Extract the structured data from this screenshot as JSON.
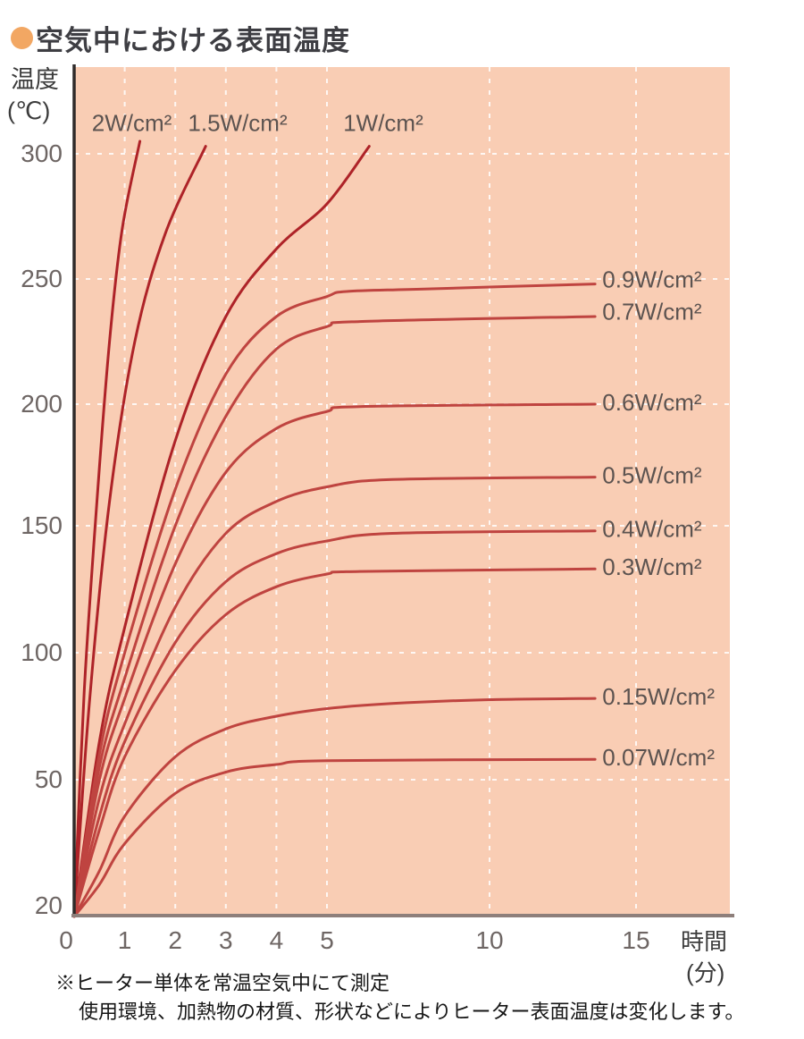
{
  "title": "空気中における表面温度",
  "y_axis": {
    "title_line1": "温度",
    "title_line2": "(℃)",
    "ticks": [
      300,
      250,
      200,
      150,
      100,
      50,
      20
    ]
  },
  "x_axis": {
    "ticks": [
      0,
      1,
      2,
      3,
      4,
      5,
      10,
      15
    ],
    "title_line1": "時間",
    "title_line2": "(分)"
  },
  "notes": {
    "line1": "※ヒーター単体を常温空気中にて測定",
    "line2": "使用環境、加熱物の材質、形状などによりヒーター表面温度は変化します。"
  },
  "colors": {
    "plot_bg": "#f9cdb4",
    "grid": "#ffffff",
    "axis": "#2f2b2a",
    "baseline": "#8e7f7b",
    "bullet": "#f2a763",
    "title_text": "#3e3e43",
    "tick_text": "#6e6664",
    "label_text": "#5c5350",
    "note_text": "#161616",
    "curve_steep": "#ae2328",
    "curve_flat": "#bf4440"
  },
  "chart_data": {
    "type": "line",
    "title": "空気中における表面温度",
    "xlabel": "時間(分)",
    "ylabel": "温度(℃)",
    "x_range": [
      0,
      15
    ],
    "y_range": [
      20,
      310
    ],
    "grid": {
      "x_lines": [
        1,
        2,
        3,
        4,
        5,
        10,
        15
      ],
      "y_lines": [
        50,
        100,
        150,
        200,
        250,
        300
      ]
    },
    "legend_position": "inline-labels",
    "series": [
      {
        "label": "2W/cm²",
        "group": "steep",
        "label_anchor": {
          "t": 0.35,
          "T": 311.5
        },
        "points": [
          [
            0,
            20
          ],
          [
            0.2,
            85
          ],
          [
            0.45,
            160
          ],
          [
            0.7,
            225
          ],
          [
            0.95,
            270
          ],
          [
            1.3,
            305
          ]
        ]
      },
      {
        "label": "1.5W/cm²",
        "group": "steep",
        "label_anchor": {
          "t": 2.25,
          "T": 311.5
        },
        "points": [
          [
            0,
            20
          ],
          [
            0.3,
            80
          ],
          [
            0.7,
            160
          ],
          [
            1.2,
            225
          ],
          [
            1.8,
            268
          ],
          [
            2.6,
            303
          ]
        ]
      },
      {
        "label": "1W/cm²",
        "group": "steep",
        "label_anchor": {
          "t": 5.5,
          "T": 311.5
        },
        "points": [
          [
            0,
            20
          ],
          [
            0.5,
            65
          ],
          [
            1,
            110
          ],
          [
            2,
            185
          ],
          [
            3,
            235
          ],
          [
            4,
            262
          ],
          [
            5,
            280
          ],
          [
            6.3,
            303
          ]
        ]
      },
      {
        "label": "0.9W/cm²",
        "group": "flat",
        "label_anchor": {
          "t": 13.85,
          "T": 249
        },
        "points": [
          [
            0,
            20
          ],
          [
            0.5,
            60
          ],
          [
            1,
            100
          ],
          [
            2,
            165
          ],
          [
            3,
            212
          ],
          [
            4,
            235
          ],
          [
            5,
            243
          ],
          [
            5.6,
            245
          ],
          [
            8,
            246
          ],
          [
            13.6,
            248
          ]
        ]
      },
      {
        "label": "0.7W/cm²",
        "group": "flat",
        "label_anchor": {
          "t": 13.85,
          "T": 236.3
        },
        "points": [
          [
            0,
            20
          ],
          [
            0.5,
            55
          ],
          [
            1,
            90
          ],
          [
            2,
            150
          ],
          [
            3,
            195
          ],
          [
            4,
            222
          ],
          [
            5,
            231
          ],
          [
            6,
            233
          ],
          [
            13.6,
            235
          ]
        ]
      },
      {
        "label": "0.6W/cm²",
        "group": "flat",
        "label_anchor": {
          "t": 13.85,
          "T": 200
        },
        "points": [
          [
            0,
            20
          ],
          [
            0.5,
            50
          ],
          [
            1,
            82
          ],
          [
            2,
            135
          ],
          [
            3,
            172
          ],
          [
            4,
            190
          ],
          [
            5,
            197
          ],
          [
            6,
            199
          ],
          [
            13.6,
            200
          ]
        ]
      },
      {
        "label": "0.5W/cm²",
        "group": "flat",
        "label_anchor": {
          "t": 13.85,
          "T": 170
        },
        "points": [
          [
            0,
            20
          ],
          [
            0.5,
            46
          ],
          [
            1,
            72
          ],
          [
            2,
            118
          ],
          [
            3,
            147
          ],
          [
            4,
            160
          ],
          [
            5,
            166
          ],
          [
            7,
            169
          ],
          [
            13.6,
            170
          ]
        ]
      },
      {
        "label": "0.4W/cm²",
        "group": "flat",
        "label_anchor": {
          "t": 13.85,
          "T": 148
        },
        "points": [
          [
            0,
            20
          ],
          [
            0.5,
            42
          ],
          [
            1,
            65
          ],
          [
            2,
            104
          ],
          [
            3,
            128
          ],
          [
            4,
            139
          ],
          [
            5,
            144
          ],
          [
            7,
            147
          ],
          [
            13.6,
            148
          ]
        ]
      },
      {
        "label": "0.3W/cm²",
        "group": "flat",
        "label_anchor": {
          "t": 13.85,
          "T": 133
        },
        "points": [
          [
            0,
            20
          ],
          [
            0.5,
            39
          ],
          [
            1,
            59
          ],
          [
            2,
            93
          ],
          [
            3,
            115
          ],
          [
            4,
            126
          ],
          [
            5,
            131
          ],
          [
            6,
            132
          ],
          [
            13.6,
            133
          ]
        ]
      },
      {
        "label": "0.15W/cm²",
        "group": "flat",
        "label_anchor": {
          "t": 13.85,
          "T": 82
        },
        "points": [
          [
            0,
            20
          ],
          [
            0.5,
            30
          ],
          [
            1,
            42
          ],
          [
            2,
            59
          ],
          [
            3,
            70
          ],
          [
            4,
            75
          ],
          [
            5,
            78
          ],
          [
            7,
            80
          ],
          [
            10,
            81.5
          ],
          [
            13.6,
            82
          ]
        ]
      },
      {
        "label": "0.07W/cm²",
        "group": "flat",
        "label_anchor": {
          "t": 13.85,
          "T": 58
        },
        "points": [
          [
            0,
            20
          ],
          [
            0.5,
            27
          ],
          [
            1,
            36
          ],
          [
            2,
            47
          ],
          [
            3,
            53
          ],
          [
            4,
            56
          ],
          [
            5,
            57.5
          ],
          [
            13.6,
            58
          ]
        ]
      }
    ]
  }
}
